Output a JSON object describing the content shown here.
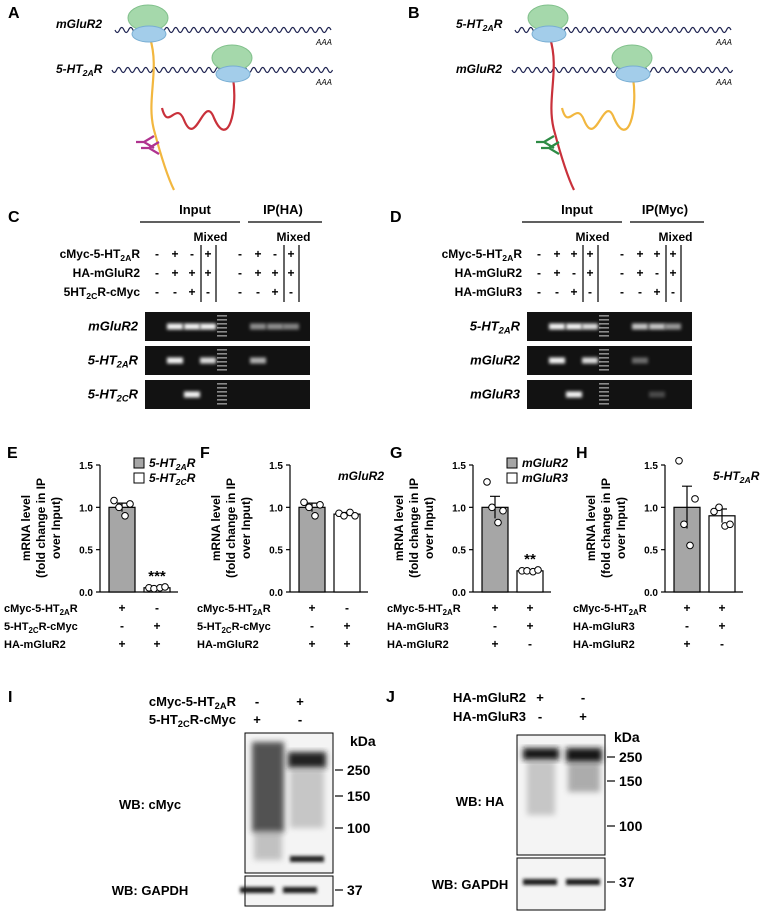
{
  "panels": {
    "A": {
      "letter": "A",
      "transcripts": [
        {
          "label": [
            "mGluR2"
          ],
          "tail": "AAA"
        },
        {
          "label": [
            "5-HT",
            "2A",
            "R"
          ],
          "tail": "AAA"
        }
      ]
    },
    "B": {
      "letter": "B",
      "transcripts": [
        {
          "label": [
            "5-HT",
            "2A",
            "R"
          ],
          "tail": "AAA"
        },
        {
          "label": [
            "mGluR2"
          ],
          "tail": "AAA"
        }
      ]
    },
    "C": {
      "letter": "C",
      "groups": [
        {
          "name": "Input",
          "mixed": "Mixed"
        },
        {
          "name": "IP(HA)",
          "mixed": "Mixed"
        }
      ],
      "rows": [
        {
          "label": [
            "cMyc-5-HT",
            "2A",
            "R"
          ],
          "signs": [
            [
              "-",
              "+",
              "-",
              "+"
            ],
            [
              "-",
              "+",
              "-",
              "+"
            ]
          ]
        },
        {
          "label": [
            "HA-mGluR2"
          ],
          "signs": [
            [
              "-",
              "+",
              "+",
              "+"
            ],
            [
              "-",
              "+",
              "+",
              "+"
            ]
          ]
        },
        {
          "label": [
            "5HT",
            "2C",
            "R-cMyc"
          ],
          "signs": [
            [
              "-",
              "-",
              "+",
              "-"
            ],
            [
              "-",
              "-",
              "+",
              "-"
            ]
          ]
        }
      ],
      "gels": [
        [
          "mGluR2"
        ],
        [
          "5-HT",
          "2A",
          "R"
        ],
        [
          "5-HT",
          "2C",
          "R"
        ]
      ]
    },
    "D": {
      "letter": "D",
      "groups": [
        {
          "name": "Input",
          "mixed": "Mixed"
        },
        {
          "name": "IP(Myc)",
          "mixed": "Mixed"
        }
      ],
      "rows": [
        {
          "label": [
            "cMyc-5-HT",
            "2A",
            "R"
          ],
          "signs": [
            [
              "-",
              "+",
              "+",
              "+"
            ],
            [
              "-",
              "+",
              "+",
              "+"
            ]
          ]
        },
        {
          "label": [
            "HA-mGluR2"
          ],
          "signs": [
            [
              "-",
              "+",
              "-",
              "+"
            ],
            [
              "-",
              "+",
              "-",
              "+"
            ]
          ]
        },
        {
          "label": [
            "HA-mGluR3"
          ],
          "signs": [
            [
              "-",
              "-",
              "+",
              "-"
            ],
            [
              "-",
              "-",
              "+",
              "-"
            ]
          ]
        }
      ],
      "gels": [
        [
          "5-HT",
          "2A",
          "R"
        ],
        [
          "mGluR2"
        ],
        [
          "mGluR3"
        ]
      ]
    },
    "E": {
      "letter": "E",
      "type": "bar",
      "ylabel": [
        "mRNA level",
        "(fold change in IP",
        "over Input)"
      ],
      "ylim": [
        0,
        1.5
      ],
      "yticks": [
        {
          "value": 0,
          "label": "0.0"
        },
        {
          "value": 0.5,
          "label": "0.5"
        },
        {
          "value": 1,
          "label": "1.0"
        },
        {
          "value": 1.5,
          "label": "1.5"
        }
      ],
      "legend": [
        [
          "5-HT",
          "2A",
          "R"
        ],
        [
          "5-HT",
          "2C",
          "R"
        ]
      ],
      "colors": [
        "#a6a6a6",
        "#ffffff"
      ],
      "values": [
        1.0,
        0.05
      ],
      "errors": [
        0.05,
        0.01
      ],
      "points": [
        [
          1.08,
          1.0,
          0.9,
          1.04
        ],
        [
          0.05,
          0.04,
          0.05,
          0.06
        ]
      ],
      "annotations": [
        null,
        "***"
      ],
      "conditions": [
        {
          "label": [
            "cMyc-5-HT",
            "2A",
            "R"
          ],
          "signs": [
            "+",
            "-"
          ]
        },
        {
          "label": [
            "5-HT",
            "2C",
            "R-cMyc"
          ],
          "signs": [
            "-",
            "+"
          ]
        },
        {
          "label": [
            "HA-mGluR2"
          ],
          "signs": [
            "+",
            "+"
          ]
        }
      ]
    },
    "F": {
      "letter": "F",
      "type": "bar",
      "ylabel": [
        "mRNA level",
        "(fold change in IP",
        "over Input)"
      ],
      "title": [
        "mGluR2"
      ],
      "ylim": [
        0,
        1.5
      ],
      "yticks": [
        {
          "value": 0,
          "label": "0.0"
        },
        {
          "value": 0.5,
          "label": "0.5"
        },
        {
          "value": 1,
          "label": "1.0"
        },
        {
          "value": 1.5,
          "label": "1.5"
        }
      ],
      "colors": [
        "#a6a6a6",
        "#ffffff"
      ],
      "values": [
        1.0,
        0.92
      ],
      "errors": [
        0.05,
        0.02
      ],
      "points": [
        [
          1.06,
          1.0,
          0.9,
          1.03
        ],
        [
          0.93,
          0.9,
          0.94,
          0.9
        ]
      ],
      "conditions": [
        {
          "label": [
            "cMyc-5-HT",
            "2A",
            "R"
          ],
          "signs": [
            "+",
            "-"
          ]
        },
        {
          "label": [
            "5-HT",
            "2C",
            "R-cMyc"
          ],
          "signs": [
            "-",
            "+"
          ]
        },
        {
          "label": [
            "HA-mGluR2"
          ],
          "signs": [
            "+",
            "+"
          ]
        }
      ]
    },
    "G": {
      "letter": "G",
      "type": "bar",
      "ylabel": [
        "mRNA level",
        "(fold change in IP",
        "over Input)"
      ],
      "ylim": [
        0,
        1.5
      ],
      "yticks": [
        {
          "value": 0,
          "label": "0.0"
        },
        {
          "value": 0.5,
          "label": "0.5"
        },
        {
          "value": 1,
          "label": "1.0"
        },
        {
          "value": 1.5,
          "label": "1.5"
        }
      ],
      "legend": [
        [
          "mGluR2"
        ],
        [
          "mGluR3"
        ]
      ],
      "colors": [
        "#a6a6a6",
        "#ffffff"
      ],
      "values": [
        1.0,
        0.25
      ],
      "errors": [
        0.13,
        0.01
      ],
      "points": [
        [
          1.3,
          1.0,
          0.82,
          0.96
        ],
        [
          0.25,
          0.25,
          0.24,
          0.26
        ]
      ],
      "annotations": [
        null,
        "**"
      ],
      "conditions": [
        {
          "label": [
            "cMyc-5-HT",
            "2A",
            "R"
          ],
          "signs": [
            "+",
            "+"
          ]
        },
        {
          "label": [
            "HA-mGluR3"
          ],
          "signs": [
            "-",
            "+"
          ]
        },
        {
          "label": [
            "HA-mGluR2"
          ],
          "signs": [
            "+",
            "-"
          ]
        }
      ]
    },
    "H": {
      "letter": "H",
      "type": "bar",
      "ylabel": [
        "mRNA level",
        "(fold change in IP",
        "over Input)"
      ],
      "title": [
        "5-HT",
        "2A",
        "R"
      ],
      "ylim": [
        0,
        1.5
      ],
      "yticks": [
        {
          "value": 0,
          "label": "0.0"
        },
        {
          "value": 0.5,
          "label": "0.5"
        },
        {
          "value": 1,
          "label": "1.0"
        },
        {
          "value": 1.5,
          "label": "1.5"
        }
      ],
      "colors": [
        "#a6a6a6",
        "#ffffff"
      ],
      "values": [
        1.0,
        0.9
      ],
      "errors": [
        0.25,
        0.08
      ],
      "points": [
        [
          1.55,
          0.8,
          0.55,
          1.1
        ],
        [
          0.95,
          1.0,
          0.78,
          0.8
        ]
      ],
      "conditions": [
        {
          "label": [
            "cMyc-5-HT",
            "2A",
            "R"
          ],
          "signs": [
            "+",
            "+"
          ]
        },
        {
          "label": [
            "HA-mGluR3"
          ],
          "signs": [
            "-",
            "+"
          ]
        },
        {
          "label": [
            "HA-mGluR2"
          ],
          "signs": [
            "+",
            "-"
          ]
        }
      ]
    },
    "I": {
      "letter": "I",
      "conditions": [
        {
          "label": [
            "cMyc-5-HT",
            "2A",
            "R"
          ],
          "signs": [
            "-",
            "+"
          ]
        },
        {
          "label": [
            "5-HT",
            "2C",
            "R-cMyc"
          ],
          "signs": [
            "+",
            "-"
          ]
        }
      ],
      "unit": "kDa",
      "markers": [
        250,
        150,
        100
      ],
      "gapdh_marker": 37,
      "blots": [
        "WB: cMyc",
        "WB: GAPDH"
      ]
    },
    "J": {
      "letter": "J",
      "conditions": [
        {
          "label": [
            "HA-mGluR2"
          ],
          "signs": [
            "+",
            "-"
          ]
        },
        {
          "label": [
            "HA-mGluR3"
          ],
          "signs": [
            "-",
            "+"
          ]
        }
      ],
      "unit": "kDa",
      "markers": [
        250,
        150,
        100
      ],
      "gapdh_marker": 37,
      "blots": [
        "WB: HA",
        "WB: GAPDH"
      ]
    }
  }
}
